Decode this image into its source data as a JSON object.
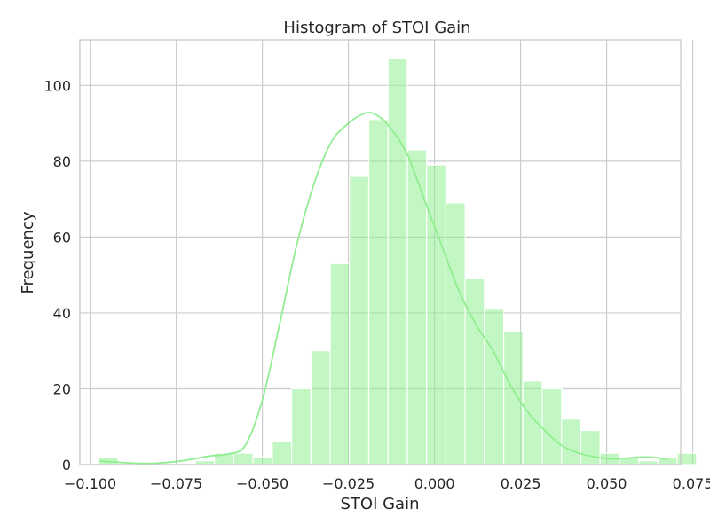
{
  "chart_data": {
    "type": "bar",
    "subtype": "histogram-with-kde",
    "title": "Histogram of STOI Gain",
    "xlabel": "STOI Gain",
    "ylabel": "Frequency",
    "xlim": [
      -0.103,
      0.0715
    ],
    "ylim": [
      0,
      112
    ],
    "grid": true,
    "color": "#90EE90",
    "x_ticks": [
      -0.1,
      -0.075,
      -0.05,
      -0.025,
      0.0,
      0.025,
      0.05,
      0.075
    ],
    "x_tick_labels": [
      "−0.100",
      "−0.075",
      "−0.050",
      "−0.025",
      "0.000",
      "0.025",
      "0.050",
      "0.075"
    ],
    "y_ticks": [
      0,
      20,
      40,
      60,
      80,
      100
    ],
    "y_tick_labels": [
      "0",
      "20",
      "40",
      "60",
      "80",
      "100"
    ],
    "bin_start": -0.0975,
    "bin_width": 0.0056,
    "counts": [
      2,
      0,
      0,
      0,
      0,
      1,
      3,
      3,
      2,
      6,
      20,
      30,
      53,
      76,
      91,
      107,
      83,
      79,
      69,
      49,
      41,
      35,
      22,
      20,
      12,
      9,
      3,
      2,
      1,
      2,
      3
    ],
    "kde": {
      "x": [
        -0.0975,
        -0.09,
        -0.0825,
        -0.075,
        -0.07,
        -0.065,
        -0.06,
        -0.055,
        -0.05,
        -0.045,
        -0.04,
        -0.035,
        -0.03,
        -0.025,
        -0.02,
        -0.0165,
        -0.013,
        -0.008,
        -0.003,
        0.002,
        0.007,
        0.012,
        0.017,
        0.022,
        0.027,
        0.032,
        0.037,
        0.042,
        0.047,
        0.052,
        0.057,
        0.062,
        0.0675
      ],
      "y": [
        1,
        0.5,
        0.3,
        0.8,
        1.5,
        2.3,
        2.8,
        5,
        17,
        37,
        58,
        74,
        85,
        90,
        92.7,
        92,
        89,
        82,
        70,
        58,
        46,
        37,
        30,
        21,
        14,
        9,
        5,
        3,
        2,
        1.5,
        1.8,
        2,
        1.5
      ]
    }
  }
}
